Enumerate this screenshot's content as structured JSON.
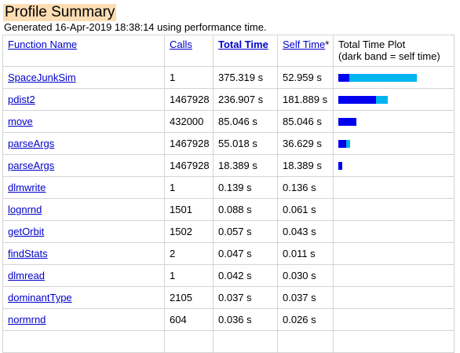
{
  "header": {
    "title": "Profile Summary",
    "subtitle": "Generated 16-Apr-2019 18:38:14 using performance time."
  },
  "columns": {
    "function_name": "Function Name",
    "calls": "Calls",
    "total_time": "Total Time",
    "self_time": "Self Time",
    "self_time_marker": "*",
    "plot_line1": "Total Time Plot",
    "plot_line2": "(dark band = self time)"
  },
  "colors": {
    "title_bg": "#fdddb3",
    "link": "#0000cc",
    "total_band": "#00b4f0",
    "self_band": "#0000ee",
    "grid": "#d4d4d4"
  },
  "plot_max_seconds": 375.319,
  "rows": [
    {
      "name": "SpaceJunkSim",
      "calls": "1",
      "total": "375.319 s",
      "self": "52.959 s",
      "total_s": 375.319,
      "self_s": 52.959
    },
    {
      "name": "pdist2",
      "calls": "1467928",
      "total": "236.907 s",
      "self": "181.889 s",
      "total_s": 236.907,
      "self_s": 181.889
    },
    {
      "name": "move",
      "calls": "432000",
      "total": "85.046 s",
      "self": "85.046 s",
      "total_s": 85.046,
      "self_s": 85.046
    },
    {
      "name": "parseArgs",
      "calls": "1467928",
      "total": "55.018 s",
      "self": "36.629 s",
      "total_s": 55.018,
      "self_s": 36.629
    },
    {
      "name": "parseArgs",
      "calls": "1467928",
      "total": "18.389 s",
      "self": "18.389 s",
      "total_s": 18.389,
      "self_s": 18.389
    },
    {
      "name": "dlmwrite",
      "calls": "1",
      "total": "0.139 s",
      "self": "0.136 s",
      "total_s": 0.139,
      "self_s": 0.136
    },
    {
      "name": "lognrnd",
      "calls": "1501",
      "total": "0.088 s",
      "self": "0.061 s",
      "total_s": 0.088,
      "self_s": 0.061
    },
    {
      "name": "getOrbit",
      "calls": "1502",
      "total": "0.057 s",
      "self": "0.043 s",
      "total_s": 0.057,
      "self_s": 0.043
    },
    {
      "name": "findStats",
      "calls": "2",
      "total": "0.047 s",
      "self": "0.011 s",
      "total_s": 0.047,
      "self_s": 0.011
    },
    {
      "name": "dlmread",
      "calls": "1",
      "total": "0.042 s",
      "self": "0.030 s",
      "total_s": 0.042,
      "self_s": 0.03
    },
    {
      "name": "dominantType",
      "calls": "2105",
      "total": "0.037 s",
      "self": "0.037 s",
      "total_s": 0.037,
      "self_s": 0.037
    },
    {
      "name": "normrnd",
      "calls": "604",
      "total": "0.036 s",
      "self": "0.026 s",
      "total_s": 0.036,
      "self_s": 0.026
    },
    {
      "name": "",
      "calls": "",
      "total": "",
      "self": "",
      "total_s": 0,
      "self_s": 0
    }
  ]
}
